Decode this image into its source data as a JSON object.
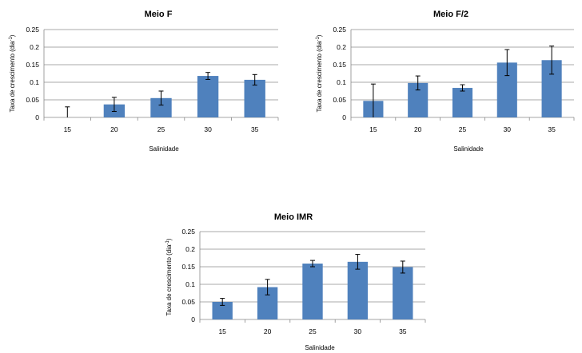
{
  "chart_data": [
    {
      "type": "bar",
      "title": "Meio F",
      "xlabel": "Salinidade",
      "ylabel": "Taxa de crescimento (dia",
      "ylabel_sup": "-1",
      "ylabel_close": ")",
      "categories": [
        "15",
        "20",
        "25",
        "30",
        "35"
      ],
      "values": [
        0,
        0.037,
        0.055,
        0.118,
        0.107
      ],
      "errors": [
        0.03,
        0.02,
        0.02,
        0.01,
        0.015
      ],
      "ylim": [
        0,
        0.25
      ],
      "yticks": [
        "0",
        "0.05",
        "0.1",
        "0.15",
        "0.2",
        "0.25"
      ],
      "grid": true,
      "color": "#4f81bd"
    },
    {
      "type": "bar",
      "title": "Meio F/2",
      "xlabel": "Salinidade",
      "ylabel": "Taxa de crescimento (dia",
      "ylabel_sup": "-1",
      "ylabel_close": ")",
      "categories": [
        "15",
        "20",
        "25",
        "30",
        "35"
      ],
      "values": [
        0.047,
        0.098,
        0.084,
        0.156,
        0.163
      ],
      "errors": [
        0.048,
        0.02,
        0.009,
        0.037,
        0.04
      ],
      "ylim": [
        0,
        0.25
      ],
      "yticks": [
        "0",
        "0.05",
        "0.1",
        "0.15",
        "0.2",
        "0.25"
      ],
      "grid": true,
      "color": "#4f81bd"
    },
    {
      "type": "bar",
      "title": "Meio IMR",
      "xlabel": "Salinidade",
      "ylabel": "Taxa de crescimento (dia",
      "ylabel_sup": "-1",
      "ylabel_close": ")",
      "categories": [
        "15",
        "20",
        "25",
        "30",
        "35"
      ],
      "values": [
        0.05,
        0.092,
        0.159,
        0.164,
        0.149
      ],
      "errors": [
        0.01,
        0.022,
        0.009,
        0.021,
        0.017
      ],
      "ylim": [
        0,
        0.25
      ],
      "yticks": [
        "0",
        "0.05",
        "0.1",
        "0.15",
        "0.2",
        "0.25"
      ],
      "grid": true,
      "color": "#4f81bd"
    }
  ]
}
